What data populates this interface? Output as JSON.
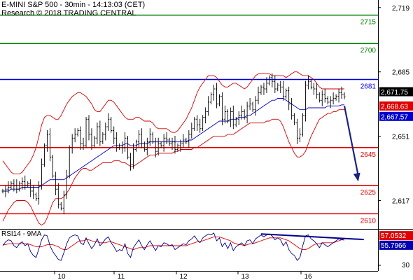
{
  "header": {
    "title": "E-MINI S&P 500 - 30min - 14:13:03 (CET)",
    "source": "Research © 2018 TRADING CENTRAL"
  },
  "colors": {
    "resistance": "#0000e0",
    "target_up": "#008000",
    "support": "#e00000",
    "bollinger": "#d00000",
    "ma": "#0000c0",
    "price": "#000000",
    "arrow": "#1a237e",
    "rsi": "#00008b",
    "rsi_ma": "#e00000",
    "tag_close": "#000000",
    "tag_upper": "#e00000",
    "tag_ma": "#0000d0",
    "tag_rsi": "#0000b0"
  },
  "chart_data": [
    {
      "type": "line",
      "panel": "price",
      "ylim": [
        2602,
        2723
      ],
      "y_ticks": [
        2719,
        2685,
        2651,
        2617
      ],
      "x_labels": [
        "10",
        "11",
        "12",
        "13",
        "16"
      ],
      "levels": [
        {
          "value": 2715,
          "label": "2715",
          "kind": "target_up"
        },
        {
          "value": 2700,
          "label": "2700",
          "kind": "target_up"
        },
        {
          "value": 2681,
          "label": "2681",
          "kind": "resistance"
        },
        {
          "value": 2645,
          "label": "2645",
          "kind": "support"
        },
        {
          "value": 2625,
          "label": "2625",
          "kind": "support"
        },
        {
          "value": 2610,
          "label": "2610",
          "kind": "support"
        }
      ],
      "tags": [
        {
          "value": 2671.75,
          "label": "2,671.75",
          "kind": "tag_close"
        },
        {
          "value": 2668.63,
          "label": "2,668.63",
          "kind": "tag_upper"
        },
        {
          "value": 2667.57,
          "label": "2,667.57",
          "kind": "tag_ma"
        }
      ],
      "arrow": {
        "from_bar": 123,
        "from_value": 2667,
        "to_bar": 128,
        "to_value": 2627
      },
      "series": [
        {
          "role": "close",
          "values": [
            2622,
            2623,
            2624,
            2626,
            2625,
            2623,
            2626,
            2627,
            2625,
            2626,
            2622,
            2620,
            2618,
            2625,
            2636,
            2646,
            2652,
            2640,
            2630,
            2623,
            2615,
            2613,
            2620,
            2630,
            2645,
            2650,
            2652,
            2654,
            2647,
            2646,
            2660,
            2652,
            2646,
            2650,
            2656,
            2648,
            2652,
            2656,
            2660,
            2654,
            2650,
            2645,
            2646,
            2645,
            2650,
            2640,
            2636,
            2644,
            2648,
            2652,
            2647,
            2644,
            2648,
            2652,
            2648,
            2643,
            2647,
            2646,
            2650,
            2649,
            2647,
            2648,
            2644,
            2646,
            2647,
            2649,
            2648,
            2652,
            2655,
            2660,
            2657,
            2655,
            2661,
            2664,
            2669,
            2673,
            2676,
            2668,
            2672,
            2660,
            2664,
            2659,
            2664,
            2657,
            2660,
            2662,
            2664,
            2661,
            2667,
            2668,
            2665,
            2670,
            2674,
            2677,
            2676,
            2679,
            2682,
            2680,
            2676,
            2678,
            2677,
            2672,
            2675,
            2668,
            2662,
            2658,
            2650,
            2652,
            2662,
            2678,
            2680,
            2677,
            2676,
            2673,
            2670,
            2673,
            2671,
            2669,
            2670,
            2671,
            2672,
            2674,
            2673,
            2671.75
          ]
        },
        {
          "role": "bollinger_upper",
          "values": [
            2638,
            2636,
            2634,
            2632,
            2631,
            2631,
            2631,
            2632,
            2634,
            2636,
            2638,
            2641,
            2645,
            2651,
            2657,
            2661,
            2662,
            2662,
            2661,
            2660,
            2660,
            2662,
            2665,
            2668,
            2670,
            2672,
            2673,
            2674,
            2674,
            2673,
            2672,
            2670,
            2668,
            2665,
            2664,
            2664,
            2666,
            2668,
            2670,
            2670,
            2669,
            2667,
            2665,
            2663,
            2661,
            2660,
            2660,
            2660,
            2661,
            2661,
            2660,
            2659,
            2659,
            2659,
            2658,
            2656,
            2655,
            2655,
            2655,
            2655,
            2654,
            2653,
            2653,
            2654,
            2656,
            2658,
            2660,
            2663,
            2666,
            2670,
            2674,
            2677,
            2679,
            2681,
            2683,
            2683,
            2683,
            2682,
            2680,
            2678,
            2677,
            2677,
            2678,
            2679,
            2679,
            2678,
            2677,
            2676,
            2677,
            2679,
            2681,
            2683,
            2684,
            2684,
            2684,
            2684,
            2684,
            2683,
            2683,
            2683,
            2683,
            2683,
            2682,
            2683,
            2684,
            2685,
            2685,
            2684,
            2683,
            2683,
            2683,
            2682,
            2681,
            2679,
            2677,
            2676,
            2676,
            2676,
            2676,
            2676,
            2676,
            2676,
            2676,
            2676
          ]
        },
        {
          "role": "bollinger_lower",
          "values": [
            2606,
            2609,
            2612,
            2614,
            2616,
            2617,
            2617,
            2617,
            2617,
            2616,
            2614,
            2611,
            2608,
            2605,
            2604,
            2605,
            2608,
            2612,
            2616,
            2618,
            2618,
            2618,
            2619,
            2621,
            2623,
            2626,
            2629,
            2631,
            2633,
            2634,
            2634,
            2633,
            2633,
            2634,
            2635,
            2636,
            2637,
            2637,
            2637,
            2637,
            2638,
            2638,
            2638,
            2637,
            2637,
            2636,
            2635,
            2635,
            2636,
            2637,
            2638,
            2639,
            2640,
            2641,
            2641,
            2641,
            2642,
            2642,
            2642,
            2642,
            2642,
            2642,
            2643,
            2643,
            2644,
            2644,
            2644,
            2644,
            2644,
            2645,
            2645,
            2646,
            2647,
            2648,
            2649,
            2650,
            2651,
            2651,
            2651,
            2651,
            2651,
            2652,
            2652,
            2652,
            2653,
            2654,
            2655,
            2656,
            2657,
            2658,
            2658,
            2658,
            2658,
            2658,
            2658,
            2659,
            2659,
            2660,
            2660,
            2660,
            2659,
            2656,
            2652,
            2648,
            2645,
            2642,
            2640,
            2640,
            2641,
            2643,
            2647,
            2651,
            2654,
            2657,
            2660,
            2661,
            2662,
            2663,
            2663,
            2664,
            2664,
            2665,
            2665,
            2665
          ]
        },
        {
          "role": "moving_average",
          "values": [
            2622,
            2622,
            2622,
            2623,
            2623,
            2623,
            2623,
            2624,
            2624,
            2624,
            2624,
            2624,
            2624,
            2624,
            2625,
            2626,
            2627,
            2628,
            2628,
            2628,
            2628,
            2628,
            2628,
            2629,
            2630,
            2631,
            2632,
            2633,
            2634,
            2635,
            2636,
            2637,
            2638,
            2639,
            2640,
            2641,
            2642,
            2643,
            2644,
            2645,
            2646,
            2646,
            2646,
            2646,
            2647,
            2647,
            2646,
            2646,
            2646,
            2647,
            2647,
            2647,
            2647,
            2648,
            2648,
            2648,
            2648,
            2648,
            2648,
            2648,
            2648,
            2648,
            2648,
            2648,
            2648,
            2648,
            2648,
            2649,
            2649,
            2650,
            2651,
            2652,
            2653,
            2654,
            2655,
            2656,
            2657,
            2658,
            2659,
            2659,
            2659,
            2659,
            2660,
            2660,
            2660,
            2661,
            2661,
            2661,
            2662,
            2662,
            2663,
            2664,
            2665,
            2666,
            2667,
            2668,
            2669,
            2670,
            2670,
            2671,
            2671,
            2671,
            2670,
            2669,
            2668,
            2667,
            2666,
            2665,
            2665,
            2665,
            2666,
            2666,
            2666,
            2666,
            2666,
            2666,
            2666,
            2667,
            2667,
            2667,
            2667,
            2667,
            2667.57,
            2667.57
          ]
        }
      ]
    },
    {
      "type": "line",
      "panel": "rsi",
      "title": "RSI14 - 9MA",
      "ylim": [
        25,
        65
      ],
      "y_ticks": [
        30
      ],
      "tags": [
        {
          "value": 57.0532,
          "label": "57.0532",
          "kind": "tag_upper"
        },
        {
          "value": 55.7966,
          "label": "55.7966",
          "kind": "tag_rsi"
        }
      ],
      "trendline": {
        "from_bar": 93,
        "from_value": 62,
        "to_bar": 130,
        "to_value": 56.3
      },
      "series": [
        {
          "role": "rsi",
          "values": [
            50,
            54,
            56,
            55,
            50,
            48,
            52,
            54,
            50,
            52,
            44,
            40,
            38,
            47,
            56,
            61,
            60,
            50,
            44,
            40,
            36,
            35,
            43,
            52,
            58,
            60,
            61,
            60,
            53,
            51,
            58,
            52,
            47,
            51,
            57,
            50,
            53,
            57,
            59,
            53,
            49,
            44,
            46,
            45,
            52,
            42,
            38,
            48,
            52,
            56,
            50,
            46,
            51,
            55,
            50,
            45,
            50,
            49,
            53,
            52,
            50,
            51,
            46,
            48,
            50,
            52,
            51,
            55,
            57,
            60,
            56,
            53,
            58,
            60,
            62,
            61,
            63,
            55,
            58,
            49,
            53,
            47,
            53,
            45,
            49,
            51,
            53,
            50,
            55,
            56,
            52,
            57,
            59,
            61,
            59,
            61,
            62,
            60,
            56,
            58,
            56,
            50,
            54,
            46,
            42,
            40,
            35,
            38,
            50,
            60,
            61,
            57,
            55,
            52,
            48,
            53,
            51,
            49,
            51,
            53,
            55,
            57,
            56,
            55.7966
          ]
        },
        {
          "role": "rsi_ma",
          "values": [
            51,
            51,
            52,
            52,
            52,
            52,
            52,
            52,
            52,
            52,
            51,
            50,
            49,
            49,
            49,
            50,
            51,
            51,
            51,
            50,
            49,
            47,
            46,
            46,
            48,
            50,
            52,
            54,
            55,
            55,
            56,
            56,
            55,
            54,
            54,
            53,
            53,
            53,
            54,
            54,
            53,
            52,
            51,
            50,
            49,
            48,
            47,
            46,
            47,
            48,
            48,
            48,
            49,
            50,
            50,
            50,
            50,
            50,
            50,
            50,
            50,
            50,
            50,
            50,
            50,
            50,
            50,
            51,
            52,
            53,
            54,
            54,
            55,
            56,
            57,
            58,
            59,
            59,
            59,
            58,
            57,
            56,
            55,
            53,
            52,
            51,
            51,
            50,
            51,
            52,
            52,
            53,
            54,
            55,
            56,
            57,
            58,
            58,
            58,
            58,
            58,
            57,
            56,
            55,
            53,
            51,
            49,
            47,
            46,
            46,
            47,
            49,
            51,
            52,
            52,
            53,
            53,
            53,
            53,
            53,
            54,
            55,
            56,
            57.0532
          ]
        }
      ]
    }
  ]
}
